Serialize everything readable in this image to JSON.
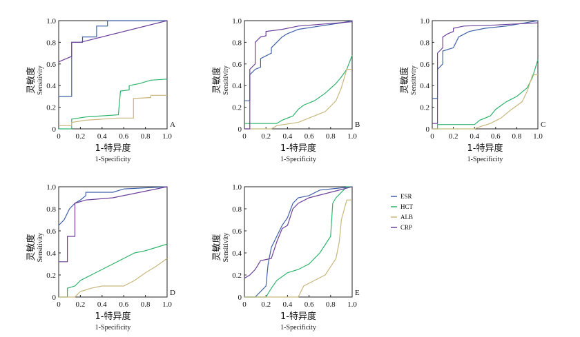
{
  "colors": {
    "ESR": "#3d5fa8",
    "HCT": "#2db36a",
    "ALB": "#c8b67c",
    "CRP": "#6b3f9a"
  },
  "legend": [
    "ESR",
    "HCT",
    "ALB",
    "CRP"
  ],
  "chart_data": [
    {
      "type": "line",
      "panel_label": "A",
      "xlabel_cn": "1-特异度",
      "xlabel_en": "1-Specificity",
      "ylabel_cn": "灵敏度",
      "ylabel_en": "Sensitivity",
      "xlim": [
        0,
        1
      ],
      "ylim": [
        0,
        1
      ],
      "xticks": [
        "0",
        "0.2",
        "0.4",
        "0.6",
        "0.8",
        "1.0"
      ],
      "yticks": [
        "0",
        "0.2",
        "0.4",
        "0.6",
        "0.8",
        "1.0"
      ],
      "series": [
        {
          "name": "ESR",
          "points": [
            [
              0,
              0.3
            ],
            [
              0.12,
              0.3
            ],
            [
              0.12,
              0.8
            ],
            [
              0.22,
              0.8
            ],
            [
              0.22,
              0.85
            ],
            [
              0.35,
              0.85
            ],
            [
              0.35,
              0.95
            ],
            [
              0.45,
              0.95
            ],
            [
              0.45,
              1.0
            ],
            [
              1,
              1
            ]
          ]
        },
        {
          "name": "HCT",
          "points": [
            [
              0,
              0
            ],
            [
              0.12,
              0
            ],
            [
              0.12,
              0.09
            ],
            [
              0.25,
              0.11
            ],
            [
              0.55,
              0.13
            ],
            [
              0.57,
              0.35
            ],
            [
              0.65,
              0.36
            ],
            [
              0.65,
              0.4
            ],
            [
              0.75,
              0.42
            ],
            [
              0.85,
              0.45
            ],
            [
              1,
              0.46
            ]
          ]
        },
        {
          "name": "ALB",
          "points": [
            [
              0,
              0.03
            ],
            [
              0.12,
              0.03
            ],
            [
              0.12,
              0.06
            ],
            [
              0.25,
              0.08
            ],
            [
              0.55,
              0.1
            ],
            [
              0.69,
              0.1
            ],
            [
              0.69,
              0.28
            ],
            [
              0.85,
              0.29
            ],
            [
              0.85,
              0.31
            ],
            [
              1,
              0.31
            ]
          ]
        },
        {
          "name": "CRP",
          "points": [
            [
              0,
              0.62
            ],
            [
              0.12,
              0.67
            ],
            [
              0.12,
              0.8
            ],
            [
              0.2,
              0.8
            ],
            [
              1,
              1
            ]
          ]
        }
      ]
    },
    {
      "type": "line",
      "panel_label": "B",
      "xlabel_cn": "1-特异度",
      "xlabel_en": "1-Specificity",
      "ylabel_cn": "灵敏度",
      "ylabel_en": "Sensitivity",
      "xlim": [
        0,
        1
      ],
      "ylim": [
        0,
        1
      ],
      "xticks": [
        "0",
        "0.2",
        "0.4",
        "0.6",
        "0.8",
        "1.0"
      ],
      "yticks": [
        "0",
        "0.2",
        "0.4",
        "0.6",
        "0.8",
        "1.0"
      ],
      "series": [
        {
          "name": "ESR",
          "points": [
            [
              0,
              0.26
            ],
            [
              0.05,
              0.26
            ],
            [
              0.05,
              0.5
            ],
            [
              0.1,
              0.55
            ],
            [
              0.15,
              0.57
            ],
            [
              0.15,
              0.65
            ],
            [
              0.25,
              0.7
            ],
            [
              0.25,
              0.75
            ],
            [
              0.3,
              0.8
            ],
            [
              0.35,
              0.85
            ],
            [
              0.4,
              0.88
            ],
            [
              0.5,
              0.92
            ],
            [
              0.7,
              0.95
            ],
            [
              0.9,
              0.98
            ],
            [
              1,
              1
            ]
          ]
        },
        {
          "name": "HCT",
          "points": [
            [
              0,
              0.05
            ],
            [
              0.3,
              0.05
            ],
            [
              0.35,
              0.08
            ],
            [
              0.45,
              0.12
            ],
            [
              0.5,
              0.18
            ],
            [
              0.55,
              0.22
            ],
            [
              0.65,
              0.26
            ],
            [
              0.75,
              0.33
            ],
            [
              0.85,
              0.42
            ],
            [
              0.9,
              0.48
            ],
            [
              0.95,
              0.55
            ],
            [
              1,
              0.68
            ]
          ]
        },
        {
          "name": "ALB",
          "points": [
            [
              0,
              0
            ],
            [
              0.25,
              0
            ],
            [
              0.3,
              0.03
            ],
            [
              0.5,
              0.06
            ],
            [
              0.6,
              0.1
            ],
            [
              0.75,
              0.16
            ],
            [
              0.85,
              0.26
            ],
            [
              0.9,
              0.38
            ],
            [
              0.95,
              0.55
            ],
            [
              1,
              0.55
            ]
          ]
        },
        {
          "name": "CRP",
          "points": [
            [
              0,
              0
            ],
            [
              0.05,
              0
            ],
            [
              0.05,
              0.55
            ],
            [
              0.1,
              0.6
            ],
            [
              0.1,
              0.8
            ],
            [
              0.15,
              0.85
            ],
            [
              0.2,
              0.86
            ],
            [
              0.2,
              0.9
            ],
            [
              0.35,
              0.92
            ],
            [
              0.5,
              0.95
            ],
            [
              1,
              0.99
            ]
          ]
        }
      ]
    },
    {
      "type": "line",
      "panel_label": "C",
      "xlabel_cn": "1-特异度",
      "xlabel_en": "1-Specificity",
      "ylabel_cn": "灵敏度",
      "ylabel_en": "Sensitivity",
      "xlim": [
        0,
        1
      ],
      "ylim": [
        0,
        1
      ],
      "xticks": [
        "0",
        "0.2",
        "0.4",
        "0.6",
        "0.8",
        "1.0"
      ],
      "yticks": [
        "0",
        "0.2",
        "0.4",
        "0.6",
        "0.8",
        "1.0"
      ],
      "series": [
        {
          "name": "ESR",
          "points": [
            [
              0,
              0.28
            ],
            [
              0.05,
              0.28
            ],
            [
              0.05,
              0.55
            ],
            [
              0.1,
              0.6
            ],
            [
              0.1,
              0.72
            ],
            [
              0.2,
              0.75
            ],
            [
              0.25,
              0.85
            ],
            [
              0.35,
              0.9
            ],
            [
              0.5,
              0.93
            ],
            [
              0.7,
              0.95
            ],
            [
              1,
              1
            ]
          ]
        },
        {
          "name": "HCT",
          "points": [
            [
              0,
              0
            ],
            [
              0.05,
              0
            ],
            [
              0.05,
              0.04
            ],
            [
              0.4,
              0.04
            ],
            [
              0.45,
              0.08
            ],
            [
              0.55,
              0.12
            ],
            [
              0.6,
              0.18
            ],
            [
              0.7,
              0.25
            ],
            [
              0.8,
              0.3
            ],
            [
              0.9,
              0.38
            ],
            [
              0.95,
              0.48
            ],
            [
              1,
              0.64
            ]
          ]
        },
        {
          "name": "ALB",
          "points": [
            [
              0,
              0
            ],
            [
              0.4,
              0
            ],
            [
              0.45,
              0.02
            ],
            [
              0.55,
              0.05
            ],
            [
              0.65,
              0.1
            ],
            [
              0.75,
              0.18
            ],
            [
              0.85,
              0.25
            ],
            [
              0.9,
              0.35
            ],
            [
              0.95,
              0.5
            ],
            [
              1,
              0.5
            ]
          ]
        },
        {
          "name": "CRP",
          "points": [
            [
              0,
              0.05
            ],
            [
              0.05,
              0.05
            ],
            [
              0.05,
              0.7
            ],
            [
              0.1,
              0.75
            ],
            [
              0.1,
              0.85
            ],
            [
              0.15,
              0.88
            ],
            [
              0.2,
              0.9
            ],
            [
              0.2,
              0.93
            ],
            [
              0.3,
              0.95
            ],
            [
              0.6,
              0.96
            ],
            [
              0.8,
              0.97
            ],
            [
              1,
              0.98
            ]
          ]
        }
      ]
    },
    {
      "type": "line",
      "panel_label": "D",
      "xlabel_cn": "1-特异度",
      "xlabel_en": "1-Specificity",
      "ylabel_cn": "灵敏度",
      "ylabel_en": "Sensitivity",
      "xlim": [
        0,
        1
      ],
      "ylim": [
        0,
        1
      ],
      "xticks": [
        "0",
        "0.2",
        "0.4",
        "0.6",
        "0.8",
        "1.0"
      ],
      "yticks": [
        "0",
        "0.2",
        "0.4",
        "0.6",
        "0.8",
        "1.0"
      ],
      "series": [
        {
          "name": "ESR",
          "points": [
            [
              0,
              0.65
            ],
            [
              0.05,
              0.7
            ],
            [
              0.1,
              0.8
            ],
            [
              0.15,
              0.85
            ],
            [
              0.2,
              0.88
            ],
            [
              0.25,
              0.92
            ],
            [
              0.25,
              0.95
            ],
            [
              0.5,
              0.95
            ],
            [
              0.6,
              0.98
            ],
            [
              1,
              1
            ]
          ]
        },
        {
          "name": "HCT",
          "points": [
            [
              0,
              0
            ],
            [
              0.08,
              0
            ],
            [
              0.08,
              0.08
            ],
            [
              0.15,
              0.1
            ],
            [
              0.2,
              0.15
            ],
            [
              0.3,
              0.2
            ],
            [
              0.4,
              0.25
            ],
            [
              0.5,
              0.3
            ],
            [
              0.6,
              0.35
            ],
            [
              0.7,
              0.4
            ],
            [
              0.8,
              0.42
            ],
            [
              0.9,
              0.45
            ],
            [
              1,
              0.48
            ]
          ]
        },
        {
          "name": "ALB",
          "points": [
            [
              0,
              0
            ],
            [
              0.15,
              0
            ],
            [
              0.2,
              0.05
            ],
            [
              0.3,
              0.08
            ],
            [
              0.4,
              0.1
            ],
            [
              0.6,
              0.1
            ],
            [
              0.7,
              0.15
            ],
            [
              0.8,
              0.22
            ],
            [
              0.9,
              0.28
            ],
            [
              1,
              0.35
            ]
          ]
        },
        {
          "name": "CRP",
          "points": [
            [
              0,
              0.32
            ],
            [
              0.08,
              0.32
            ],
            [
              0.08,
              0.55
            ],
            [
              0.15,
              0.55
            ],
            [
              0.15,
              0.85
            ],
            [
              0.25,
              0.88
            ],
            [
              0.5,
              0.9
            ],
            [
              1,
              1
            ]
          ]
        }
      ]
    },
    {
      "type": "line",
      "panel_label": "E",
      "xlabel_cn": "1-特异度",
      "xlabel_en": "1-Specificity",
      "ylabel_cn": "灵敏度",
      "ylabel_en": "Sensitivity",
      "xlim": [
        0,
        1
      ],
      "ylim": [
        0,
        1
      ],
      "xticks": [
        "0",
        "0.2",
        "0.4",
        "0.6",
        "0.8",
        "1.0"
      ],
      "yticks": [
        "0",
        "0.2",
        "0.4",
        "0.6",
        "0.8",
        "1.0"
      ],
      "series": [
        {
          "name": "ESR",
          "points": [
            [
              0,
              0
            ],
            [
              0.1,
              0
            ],
            [
              0.15,
              0.05
            ],
            [
              0.2,
              0.1
            ],
            [
              0.22,
              0.3
            ],
            [
              0.25,
              0.45
            ],
            [
              0.3,
              0.55
            ],
            [
              0.35,
              0.65
            ],
            [
              0.4,
              0.72
            ],
            [
              0.45,
              0.85
            ],
            [
              0.5,
              0.9
            ],
            [
              0.6,
              0.92
            ],
            [
              0.7,
              0.97
            ],
            [
              1,
              1
            ]
          ]
        },
        {
          "name": "HCT",
          "points": [
            [
              0,
              0
            ],
            [
              0.2,
              0
            ],
            [
              0.25,
              0.08
            ],
            [
              0.3,
              0.15
            ],
            [
              0.4,
              0.22
            ],
            [
              0.5,
              0.25
            ],
            [
              0.6,
              0.3
            ],
            [
              0.7,
              0.4
            ],
            [
              0.8,
              0.55
            ],
            [
              0.82,
              0.85
            ],
            [
              0.85,
              0.9
            ],
            [
              0.9,
              0.95
            ],
            [
              0.95,
              1
            ],
            [
              1,
              1
            ]
          ]
        },
        {
          "name": "ALB",
          "points": [
            [
              0,
              0
            ],
            [
              0.5,
              0
            ],
            [
              0.55,
              0.1
            ],
            [
              0.65,
              0.15
            ],
            [
              0.75,
              0.2
            ],
            [
              0.85,
              0.35
            ],
            [
              0.88,
              0.5
            ],
            [
              0.9,
              0.7
            ],
            [
              0.95,
              0.88
            ],
            [
              1,
              0.88
            ]
          ]
        },
        {
          "name": "CRP",
          "points": [
            [
              0,
              0.17
            ],
            [
              0.05,
              0.2
            ],
            [
              0.1,
              0.25
            ],
            [
              0.15,
              0.33
            ],
            [
              0.25,
              0.35
            ],
            [
              0.3,
              0.5
            ],
            [
              0.35,
              0.62
            ],
            [
              0.4,
              0.65
            ],
            [
              0.45,
              0.8
            ],
            [
              0.5,
              0.85
            ],
            [
              0.6,
              0.9
            ],
            [
              0.8,
              0.95
            ],
            [
              1,
              1
            ]
          ]
        }
      ]
    }
  ]
}
